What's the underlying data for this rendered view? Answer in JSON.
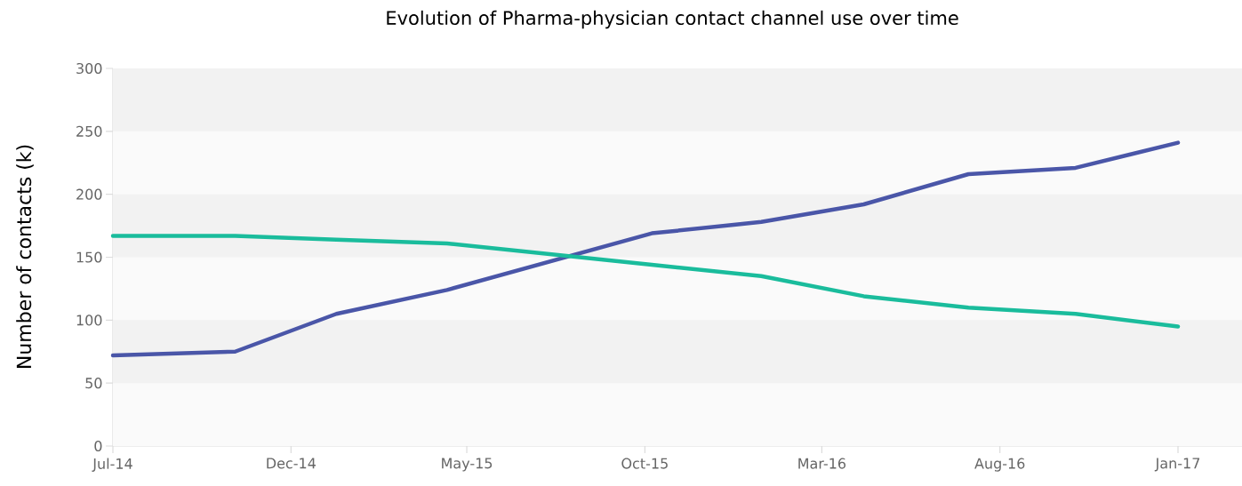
{
  "chart_data": {
    "type": "line",
    "title": "Evolution of Pharma-physician contact channel use over time",
    "ylabel": "Number of contacts (k)",
    "x": [
      "2014-07-01",
      "2014-10-14",
      "2015-01-09",
      "2015-04-14",
      "2015-10-07",
      "2016-01-09",
      "2016-04-06",
      "2016-07-05",
      "2016-10-05",
      "2017-01-01"
    ],
    "series": [
      {
        "color": "#4a56a8",
        "values": [
          72,
          75,
          105,
          124,
          169,
          178,
          192,
          216,
          221,
          241
        ]
      },
      {
        "color": "#1abc9c",
        "values": [
          167,
          167,
          164,
          161,
          144,
          135,
          119,
          110,
          105,
          95
        ]
      }
    ],
    "xlim": [
      "2014-07-01",
      "2017-02-25"
    ],
    "xticks": [
      {
        "value": "2014-07-01",
        "label": "Jul-14"
      },
      {
        "value": "2014-12-01",
        "label": "Dec-14"
      },
      {
        "value": "2015-05-01",
        "label": "May-15"
      },
      {
        "value": "2015-10-01",
        "label": "Oct-15"
      },
      {
        "value": "2016-03-01",
        "label": "Mar-16"
      },
      {
        "value": "2016-08-01",
        "label": "Aug-16"
      },
      {
        "value": "2017-01-01",
        "label": "Jan-17"
      }
    ],
    "ylim": [
      0,
      300
    ],
    "yticks": [
      0,
      50,
      100,
      150,
      200,
      250,
      300
    ],
    "bands": [
      {
        "axis": "y",
        "from": 50,
        "to": 100,
        "color": "#f2f2f2"
      },
      {
        "axis": "y",
        "from": 150,
        "to": 200,
        "color": "#f2f2f2"
      },
      {
        "axis": "y",
        "from": 250,
        "to": 300,
        "color": "#f2f2f2"
      }
    ],
    "marker": "none",
    "line_style": "solid"
  }
}
